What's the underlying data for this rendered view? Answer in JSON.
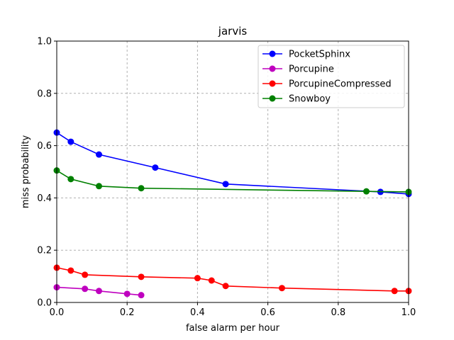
{
  "chart_data": {
    "type": "line",
    "title": "jarvis",
    "xlabel": "false alarm per hour",
    "ylabel": "miss probability",
    "xlim": [
      0,
      1.0
    ],
    "ylim": [
      0,
      1.0
    ],
    "xticks": [
      "0.0",
      "0.2",
      "0.4",
      "0.6",
      "0.8",
      "1.0"
    ],
    "yticks": [
      "0.0",
      "0.2",
      "0.4",
      "0.6",
      "0.8",
      "1.0"
    ],
    "grid": true,
    "legend_position": "top-right",
    "series": [
      {
        "name": "PocketSphinx",
        "color": "#0000ff",
        "x": [
          0.0,
          0.04,
          0.12,
          0.28,
          0.48,
          0.92,
          1.0
        ],
        "y": [
          0.65,
          0.615,
          0.566,
          0.516,
          0.453,
          0.423,
          0.415
        ]
      },
      {
        "name": "Porcupine",
        "color": "#bf00bf",
        "x": [
          0.0,
          0.08,
          0.12,
          0.2,
          0.24
        ],
        "y": [
          0.058,
          0.052,
          0.044,
          0.033,
          0.028
        ]
      },
      {
        "name": "PorcupineCompressed",
        "color": "#ff0000",
        "x": [
          0.0,
          0.04,
          0.08,
          0.24,
          0.4,
          0.44,
          0.48,
          0.64,
          0.96,
          1.0
        ],
        "y": [
          0.133,
          0.122,
          0.106,
          0.098,
          0.093,
          0.084,
          0.063,
          0.055,
          0.044,
          0.044
        ]
      },
      {
        "name": "Snowboy",
        "color": "#008000",
        "x": [
          0.0,
          0.04,
          0.12,
          0.24,
          0.88,
          1.0
        ],
        "y": [
          0.505,
          0.472,
          0.445,
          0.437,
          0.425,
          0.423
        ]
      }
    ]
  }
}
